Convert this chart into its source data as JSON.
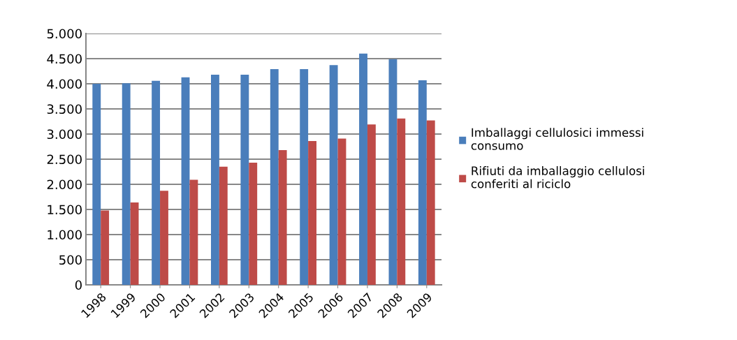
{
  "chart_data": {
    "type": "bar",
    "categories": [
      "1998",
      "1999",
      "2000",
      "2001",
      "2002",
      "2003",
      "2004",
      "2005",
      "2006",
      "2007",
      "2008",
      "2009"
    ],
    "series": [
      {
        "name": "Imballaggi cellulosici immessi\nconsumo",
        "color": "#4a7ebb",
        "values": [
          4000,
          4010,
          4060,
          4130,
          4180,
          4180,
          4290,
          4290,
          4370,
          4600,
          4490,
          4070
        ]
      },
      {
        "name": "Rifiuti da imballaggio cellulosi\nconferiti al riciclo",
        "color": "#be4b48",
        "values": [
          1480,
          1640,
          1870,
          2090,
          2350,
          2430,
          2680,
          2860,
          2910,
          3190,
          3310,
          3270
        ]
      }
    ],
    "ylim": [
      0,
      5000
    ],
    "yticks": [
      0,
      500,
      {
        "value": 1000,
        "label": "1.000"
      },
      {
        "value": 1500,
        "label": "1.500"
      },
      {
        "value": 2000,
        "label": "2.000"
      },
      {
        "value": 2500,
        "label": "2.500"
      },
      {
        "value": 3000,
        "label": "3.000"
      },
      {
        "value": 3500,
        "label": "3.500"
      },
      {
        "value": 4000,
        "label": "4.000"
      },
      {
        "value": 4500,
        "label": "4.500"
      },
      {
        "value": 5000,
        "label": "5.000"
      }
    ],
    "grid": "y",
    "legend": "right"
  }
}
